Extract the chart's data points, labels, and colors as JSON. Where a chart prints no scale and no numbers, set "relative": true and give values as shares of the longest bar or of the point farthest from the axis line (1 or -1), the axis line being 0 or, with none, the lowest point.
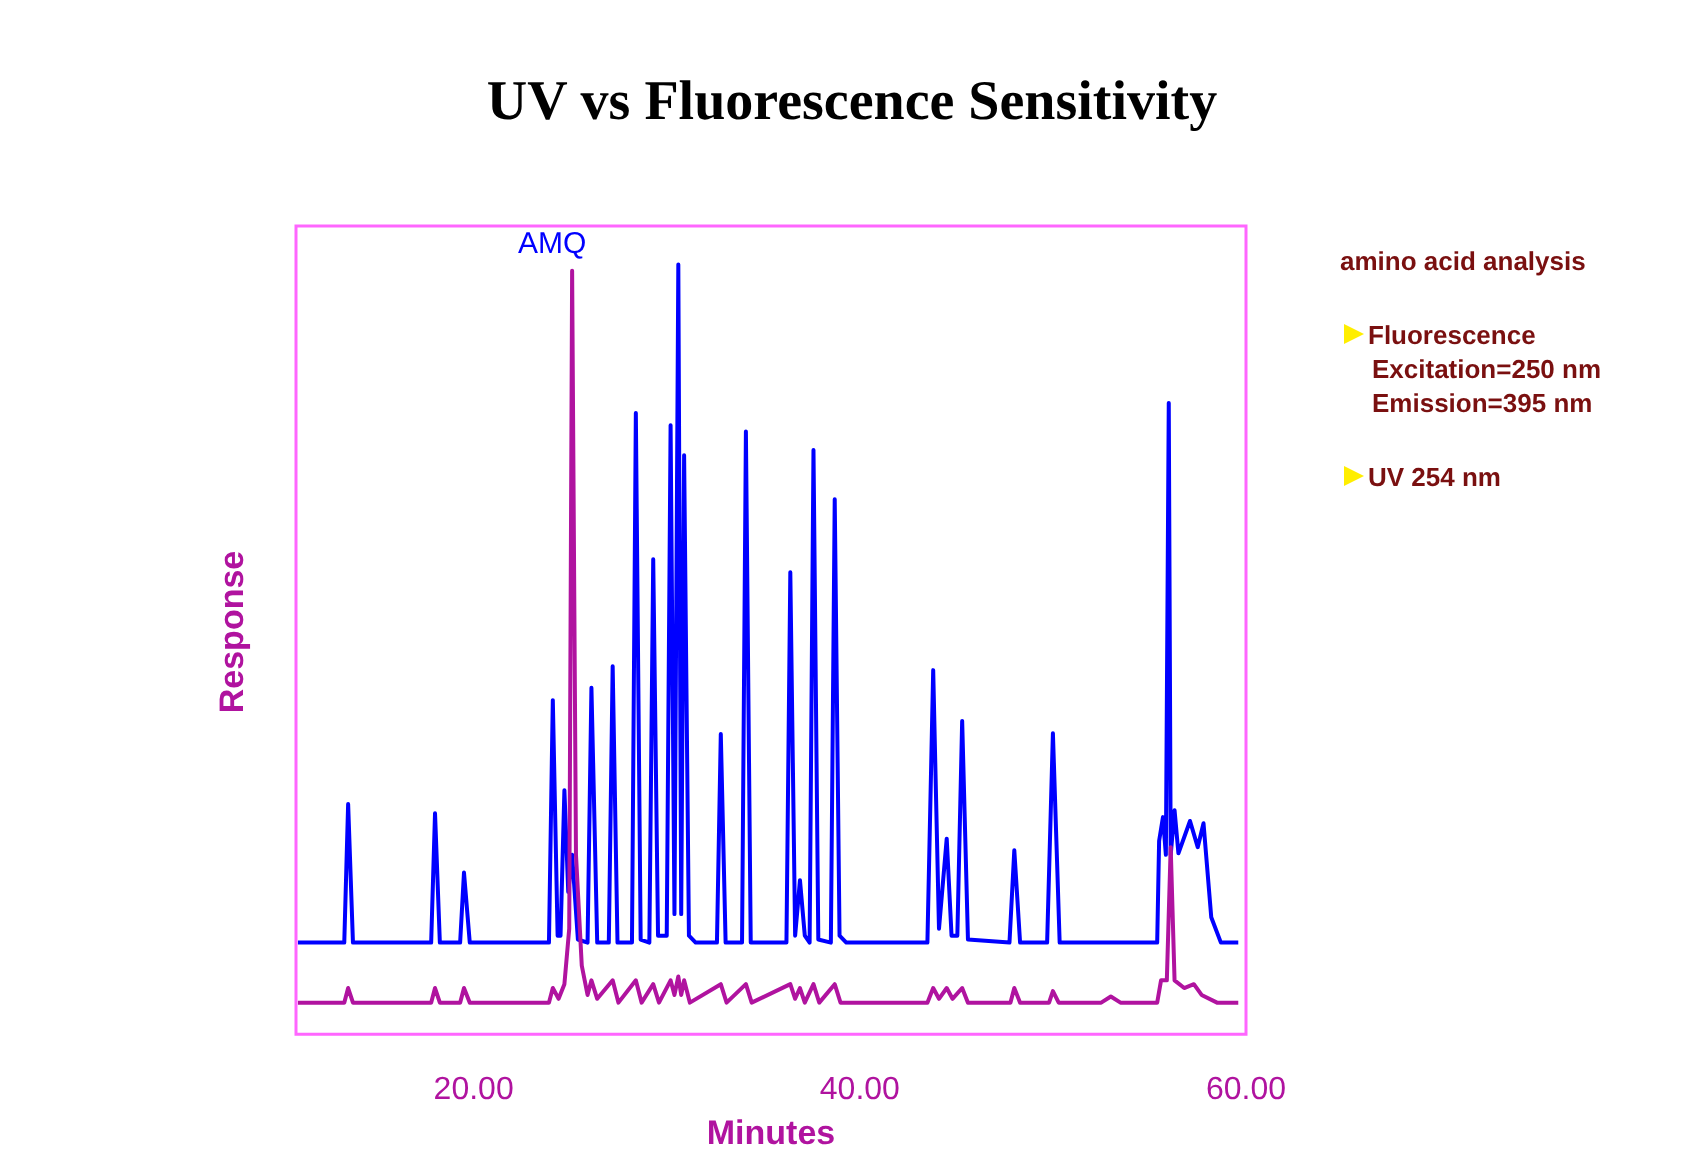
{
  "chart_data": {
    "type": "line",
    "title": "UV vs Fluorescence Sensitivity",
    "xlabel": "Minutes",
    "ylabel": "Response",
    "relative": true,
    "xlim": [
      10.8,
      60
    ],
    "xticks": [
      {
        "value": 20,
        "label": "20.00"
      },
      {
        "value": 40,
        "label": "40.00"
      },
      {
        "value": 60,
        "label": "60.00"
      }
    ],
    "marker": "none",
    "annotations": [
      {
        "text": "AMQ",
        "x": 25.1,
        "y": 0.992
      },
      "amino acid analysis",
      "Fluorescence\nExcitation=250 nm\nEmission=395 nm",
      "UV 254 nm"
    ],
    "series": [
      {
        "color": "#0000ff",
        "x": [
          10.9,
          13.3,
          13.5,
          13.75,
          17.8,
          18.0,
          18.25,
          19.3,
          19.5,
          19.8,
          23.9,
          24.1,
          24.35,
          24.5,
          24.7,
          24.9,
          25.1,
          25.4,
          25.9,
          26.1,
          26.4,
          27.0,
          27.2,
          27.45,
          28.2,
          28.4,
          28.65,
          29.1,
          29.3,
          29.55,
          30.0,
          30.2,
          30.4,
          30.6,
          30.75,
          30.9,
          31.15,
          31.5,
          32.6,
          32.8,
          33.05,
          33.9,
          34.1,
          34.35,
          36.2,
          36.4,
          36.65,
          36.9,
          37.15,
          37.4,
          37.6,
          37.85,
          38.5,
          38.7,
          38.95,
          39.3,
          43.5,
          43.8,
          44.1,
          44.5,
          44.75,
          45.05,
          45.3,
          45.6,
          47.75,
          48.0,
          48.3,
          49.7,
          50.0,
          50.35,
          55.4,
          55.5,
          55.7,
          55.85,
          56.0,
          56.1,
          56.3,
          56.5,
          57.1,
          57.5,
          57.8,
          58.2,
          58.7,
          59.6
        ],
        "values": [
          0.119,
          0.119,
          0.299,
          0.119,
          0.119,
          0.287,
          0.119,
          0.119,
          0.21,
          0.119,
          0.119,
          0.434,
          0.128,
          0.128,
          0.317,
          0.185,
          0.233,
          0.123,
          0.119,
          0.45,
          0.119,
          0.119,
          0.478,
          0.119,
          0.119,
          0.807,
          0.123,
          0.119,
          0.617,
          0.128,
          0.128,
          0.791,
          0.156,
          1.0,
          0.156,
          0.752,
          0.128,
          0.119,
          0.119,
          0.39,
          0.119,
          0.119,
          0.783,
          0.119,
          0.119,
          0.6,
          0.128,
          0.2,
          0.128,
          0.119,
          0.759,
          0.123,
          0.119,
          0.695,
          0.128,
          0.119,
          0.119,
          0.473,
          0.137,
          0.254,
          0.128,
          0.128,
          0.407,
          0.123,
          0.119,
          0.239,
          0.119,
          0.119,
          0.391,
          0.119,
          0.119,
          0.251,
          0.282,
          0.233,
          0.82,
          0.233,
          0.291,
          0.235,
          0.277,
          0.243,
          0.274,
          0.152,
          0.119,
          0.119
        ]
      },
      {
        "color": "#b0139f",
        "x": [
          10.9,
          13.3,
          13.5,
          13.75,
          17.8,
          18.0,
          18.25,
          19.3,
          19.5,
          19.8,
          23.9,
          24.1,
          24.4,
          24.7,
          24.95,
          25.1,
          25.3,
          25.6,
          25.9,
          26.1,
          26.4,
          27.2,
          27.5,
          28.4,
          28.7,
          29.3,
          29.6,
          30.2,
          30.4,
          30.6,
          30.75,
          30.9,
          31.2,
          32.8,
          33.1,
          34.1,
          34.4,
          36.4,
          36.65,
          36.9,
          37.15,
          37.6,
          37.9,
          38.7,
          39.0,
          43.5,
          43.8,
          44.1,
          44.5,
          44.8,
          45.3,
          45.6,
          47.8,
          48.0,
          48.3,
          49.8,
          50.0,
          50.3,
          52.5,
          53.0,
          53.5,
          55.4,
          55.6,
          55.9,
          56.1,
          56.3,
          56.8,
          57.3,
          57.7,
          58.5,
          59.6
        ],
        "values": [
          0.041,
          0.041,
          0.06,
          0.041,
          0.041,
          0.06,
          0.041,
          0.041,
          0.06,
          0.041,
          0.041,
          0.06,
          0.046,
          0.065,
          0.137,
          0.992,
          0.233,
          0.089,
          0.051,
          0.07,
          0.046,
          0.07,
          0.041,
          0.07,
          0.041,
          0.065,
          0.041,
          0.07,
          0.051,
          0.075,
          0.051,
          0.07,
          0.041,
          0.065,
          0.041,
          0.065,
          0.041,
          0.065,
          0.046,
          0.06,
          0.041,
          0.065,
          0.041,
          0.065,
          0.041,
          0.041,
          0.06,
          0.046,
          0.06,
          0.046,
          0.06,
          0.041,
          0.041,
          0.06,
          0.041,
          0.041,
          0.056,
          0.041,
          0.041,
          0.049,
          0.041,
          0.041,
          0.07,
          0.07,
          0.243,
          0.07,
          0.06,
          0.065,
          0.051,
          0.041,
          0.041
        ]
      }
    ]
  }
}
